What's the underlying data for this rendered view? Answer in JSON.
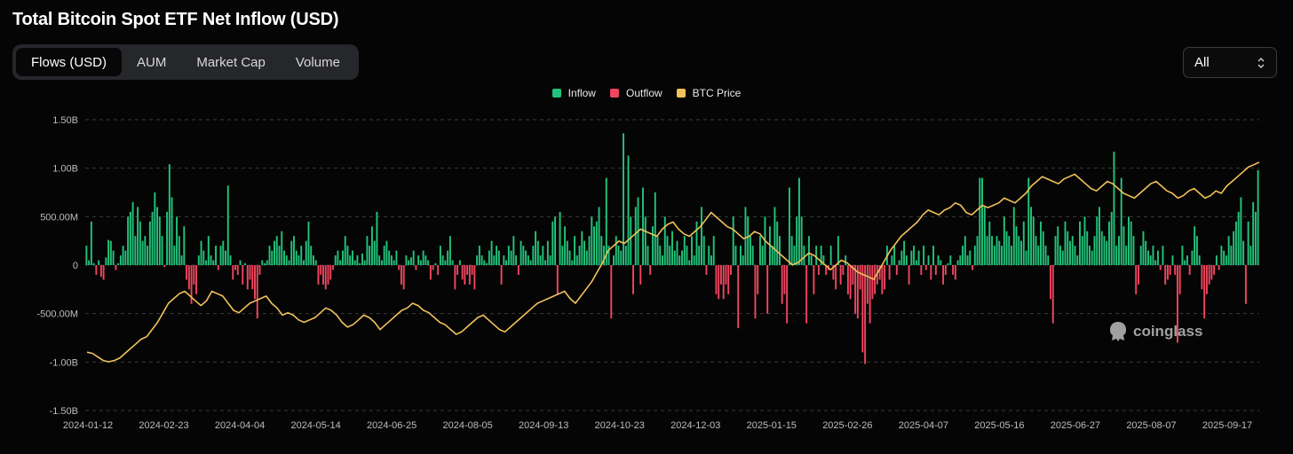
{
  "title": "Total Bitcoin Spot ETF Net Inflow (USD)",
  "tabs": [
    {
      "label": "Flows (USD)",
      "active": true
    },
    {
      "label": "AUM",
      "active": false
    },
    {
      "label": "Market Cap",
      "active": false
    },
    {
      "label": "Volume",
      "active": false
    }
  ],
  "range": {
    "selected": "All"
  },
  "legend": [
    {
      "label": "Inflow",
      "color": "#22c37a"
    },
    {
      "label": "Outflow",
      "color": "#f0455e"
    },
    {
      "label": "BTC Price",
      "color": "#f2c25b"
    }
  ],
  "watermark": "coinglass",
  "chart_data": {
    "type": "bar",
    "title": "",
    "ylim": [
      -1.5,
      1.5
    ],
    "y_ticks": [
      1.5,
      1.0,
      0.5,
      0,
      -0.5,
      -1.0,
      -1.5
    ],
    "y_tick_labels": [
      "1.50B",
      "1.00B",
      "500.00M",
      "0",
      "-500.00M",
      "-1.00B",
      "-1.50B"
    ],
    "x_ticks": [
      "2024-01-12",
      "2024-02-23",
      "2024-04-04",
      "2024-05-14",
      "2024-06-25",
      "2024-08-05",
      "2024-09-13",
      "2024-10-23",
      "2024-12-03",
      "2025-01-15",
      "2025-02-26",
      "2025-04-07",
      "2025-05-16",
      "2025-06-27",
      "2025-08-07",
      "2025-09-17"
    ],
    "grid": true,
    "legend_position": "top-center",
    "series": [
      {
        "name": "Inflow/Outflow",
        "unit": "B USD",
        "values": [
          0.2,
          0.05,
          0.45,
          0.02,
          -0.1,
          0.05,
          -0.12,
          -0.15,
          0.08,
          0.26,
          0.25,
          0.15,
          -0.05,
          0.02,
          0.1,
          0.2,
          0.15,
          0.5,
          0.55,
          0.65,
          0.3,
          0.6,
          0.45,
          0.25,
          0.3,
          0.2,
          0.45,
          0.55,
          0.75,
          0.6,
          0.5,
          0.3,
          -0.02,
          0.55,
          1.04,
          0.7,
          0.2,
          0.5,
          0.3,
          0.1,
          0.4,
          -0.15,
          -0.25,
          -0.4,
          -0.2,
          -0.3,
          0.1,
          0.25,
          0.15,
          0.05,
          0.3,
          0.1,
          0.05,
          0.2,
          -0.05,
          0.2,
          0.25,
          0.15,
          0.82,
          0.1,
          -0.15,
          -0.05,
          -0.1,
          0.05,
          -0.2,
          0.02,
          -0.25,
          -0.15,
          -0.25,
          -0.35,
          -0.55,
          -0.1,
          0.05,
          0.02,
          0.05,
          0.2,
          0.15,
          0.25,
          0.3,
          0.2,
          0.35,
          0.15,
          0.1,
          0.05,
          0.25,
          0.3,
          0.15,
          0.1,
          0.2,
          0.05,
          0.25,
          0.45,
          0.2,
          0.1,
          0.05,
          -0.2,
          -0.1,
          -0.2,
          -0.25,
          -0.2,
          -0.15,
          -0.05,
          0.1,
          0.15,
          0.05,
          0.15,
          0.3,
          0.2,
          0.1,
          0.15,
          0.05,
          0.1,
          0.02,
          0.12,
          0.05,
          0.3,
          0.2,
          0.4,
          0.25,
          0.55,
          0.1,
          0.05,
          0.2,
          0.25,
          0.15,
          0.1,
          0.05,
          0.15,
          -0.05,
          -0.2,
          -0.25,
          0.1,
          0.05,
          0.08,
          0.15,
          -0.05,
          0.1,
          0.05,
          0.15,
          0.1,
          0.05,
          -0.15,
          -0.05,
          0.02,
          -0.1,
          0.2,
          0.1,
          0.05,
          0.15,
          0.3,
          0.05,
          -0.25,
          -0.1,
          0.05,
          -0.15,
          -0.2,
          -0.1,
          -0.2,
          -0.1,
          -0.25,
          0.1,
          0.2,
          0.1,
          0.05,
          0.02,
          0.15,
          0.25,
          0.1,
          0.2,
          0.15,
          -0.2,
          0.1,
          0.05,
          0.2,
          0.15,
          0.3,
          0.1,
          -0.1,
          0.25,
          0.2,
          0.15,
          0.1,
          0.05,
          0.2,
          0.35,
          0.25,
          0.1,
          0.2,
          0.05,
          0.25,
          0.1,
          0.45,
          0.5,
          -0.3,
          0.55,
          0.2,
          0.4,
          0.25,
          0.15,
          0.05,
          0.3,
          0.1,
          0.2,
          0.35,
          0.25,
          0.15,
          0.3,
          0.5,
          0.4,
          0.45,
          0.6,
          0.3,
          0.2,
          0.9,
          0.2,
          -0.55,
          0.1,
          0.3,
          0.2,
          0.15,
          1.36,
          0.2,
          1.13,
          0.5,
          -0.3,
          0.6,
          0.7,
          -0.2,
          0.8,
          0.5,
          0.2,
          -0.1,
          0.4,
          0.75,
          0.3,
          0.2,
          0.1,
          0.5,
          0.3,
          0.2,
          0.35,
          0.15,
          0.25,
          0.1,
          0.15,
          0.3,
          0.2,
          0.05,
          0.3,
          0.1,
          0.45,
          0.2,
          0.6,
          0.3,
          -0.1,
          0.2,
          0.1,
          0.3,
          -0.3,
          -0.35,
          -0.2,
          -0.35,
          -0.2,
          -0.3,
          -0.1,
          0.5,
          0.2,
          -0.65,
          0.2,
          0.1,
          0.6,
          0.5,
          0.3,
          0.2,
          -0.55,
          -0.3,
          0.3,
          0.2,
          0.5,
          -0.5,
          0.4,
          0.2,
          0.6,
          0.45,
          0.3,
          -0.4,
          -0.3,
          -0.6,
          0.8,
          0.3,
          0.2,
          0.5,
          0.9,
          0.5,
          0.2,
          -0.6,
          0.3,
          0.1,
          -0.3,
          0.2,
          -0.1,
          0.2,
          0.1,
          -0.1,
          -0.05,
          0.2,
          -0.15,
          -0.25,
          0.3,
          -0.2,
          -0.1,
          0.1,
          -0.3,
          -0.35,
          -0.2,
          -0.5,
          -0.55,
          -0.25,
          -0.9,
          -1.02,
          -0.4,
          -0.6,
          -0.35,
          -0.3,
          -0.2,
          -0.15,
          -0.3,
          -0.25,
          0.2,
          -0.15,
          0.1,
          0.2,
          -0.1,
          0.05,
          0.15,
          0.25,
          0.1,
          -0.2,
          0.15,
          0.2,
          0.05,
          0.15,
          -0.1,
          0.2,
          -0.05,
          0.1,
          -0.15,
          0.2,
          -0.1,
          0.1,
          0.05,
          -0.2,
          -0.1,
          0.02,
          0.1,
          -0.1,
          -0.15,
          0.05,
          0.1,
          0.2,
          0.3,
          0.1,
          0.15,
          -0.05,
          0.2,
          0.3,
          0.9,
          0.9,
          0.6,
          0.3,
          0.45,
          0.3,
          0.2,
          0.3,
          0.25,
          0.2,
          0.5,
          0.35,
          0.3,
          0.2,
          0.6,
          0.4,
          0.3,
          0.25,
          0.45,
          0.15,
          0.9,
          0.6,
          0.5,
          0.3,
          0.2,
          0.45,
          0.35,
          0.2,
          0.1,
          -0.35,
          -0.6,
          0.3,
          0.4,
          0.2,
          0.15,
          0.45,
          0.35,
          0.25,
          0.3,
          0.2,
          0.1,
          0.45,
          0.3,
          0.5,
          0.35,
          0.2,
          0.15,
          0.3,
          0.5,
          0.6,
          0.35,
          0.3,
          0.25,
          0.45,
          0.55,
          1.17,
          0.2,
          0.3,
          0.9,
          0.4,
          0.2,
          0.5,
          0.45,
          0.3,
          -0.3,
          -0.2,
          0.2,
          0.35,
          0.25,
          0.15,
          0.1,
          0.2,
          0.05,
          0.15,
          -0.05,
          0.2,
          -0.2,
          -0.15,
          -0.1,
          0.1,
          -0.1,
          -0.8,
          -0.3,
          0.2,
          0.05,
          0.1,
          -0.1,
          0.15,
          0.4,
          0.3,
          0.1,
          -0.25,
          -0.55,
          -0.3,
          -0.2,
          -0.15,
          -0.1,
          0.1,
          -0.05,
          0.2,
          0.15,
          0.1,
          0.3,
          0.2,
          0.35,
          0.45,
          0.55,
          0.7,
          0.25,
          -0.4,
          0.45,
          0.2,
          0.65,
          0.55,
          0.98
        ]
      },
      {
        "name": "BTC Price",
        "axis": "right (hidden)",
        "values": [
          45500,
          45000,
          43500,
          42000,
          41500,
          42000,
          43000,
          45000,
          47000,
          49000,
          51000,
          52000,
          55000,
          58000,
          62000,
          66000,
          68000,
          70000,
          71000,
          69000,
          67000,
          65000,
          67000,
          71000,
          70000,
          69000,
          66000,
          63000,
          62000,
          64000,
          66000,
          67000,
          68000,
          69000,
          66000,
          64000,
          61000,
          62000,
          61000,
          59000,
          58000,
          59000,
          60000,
          62000,
          64000,
          63000,
          61000,
          58000,
          56000,
          57000,
          59000,
          61000,
          60000,
          58000,
          55000,
          57000,
          59000,
          61000,
          63000,
          64000,
          66000,
          65000,
          63000,
          62000,
          60000,
          58000,
          57000,
          55000,
          53000,
          54000,
          56000,
          58000,
          60000,
          61000,
          59000,
          57000,
          55000,
          54000,
          56000,
          58000,
          60000,
          62000,
          64000,
          66000,
          67000,
          68000,
          69000,
          70000,
          71000,
          68000,
          66000,
          69000,
          72000,
          75000,
          79000,
          83000,
          88000,
          90000,
          92000,
          91000,
          93000,
          95000,
          97000,
          96000,
          95000,
          94000,
          97000,
          99000,
          100000,
          97000,
          95000,
          94000,
          96000,
          98000,
          101000,
          104000,
          102000,
          100000,
          98000,
          97000,
          95000,
          93000,
          94000,
          96000,
          95000,
          92000,
          90000,
          88000,
          86000,
          84000,
          82000,
          83000,
          85000,
          87000,
          86000,
          84000,
          82000,
          80000,
          82000,
          84000,
          83000,
          81000,
          79000,
          78000,
          77000,
          76000,
          80000,
          84000,
          88000,
          91000,
          94000,
          96000,
          98000,
          100000,
          103000,
          105000,
          104000,
          103000,
          105000,
          106000,
          108000,
          107000,
          104000,
          103000,
          105000,
          107000,
          106000,
          107000,
          108000,
          110000,
          109000,
          108000,
          110000,
          112000,
          115000,
          117000,
          119000,
          118000,
          117000,
          116000,
          118000,
          119000,
          120000,
          118000,
          116000,
          114000,
          113000,
          115000,
          117000,
          116000,
          114000,
          112000,
          111000,
          110000,
          112000,
          114000,
          116000,
          117000,
          115000,
          113000,
          112000,
          110000,
          111000,
          113000,
          114000,
          112000,
          110000,
          111000,
          113000,
          112000,
          115000,
          117000,
          119000,
          121000,
          123000,
          124000,
          125000
        ]
      }
    ]
  }
}
